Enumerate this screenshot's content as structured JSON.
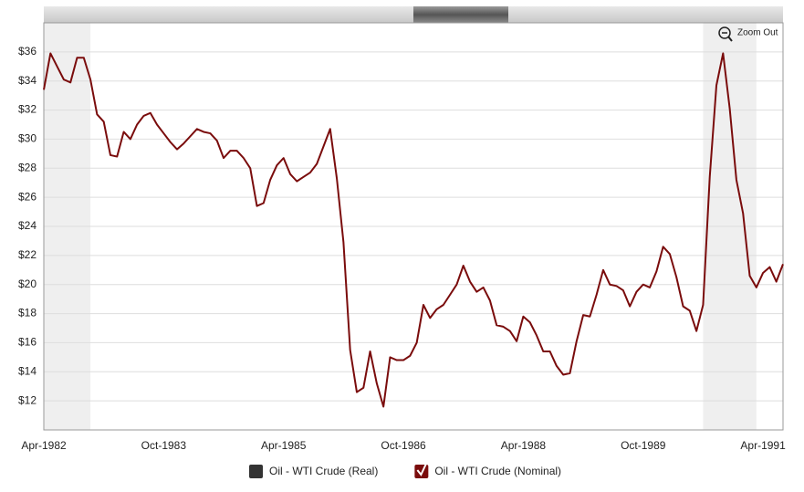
{
  "chart_data": {
    "type": "line",
    "x": [
      "Apr-1982",
      "May-1982",
      "Jun-1982",
      "Jul-1982",
      "Aug-1982",
      "Sep-1982",
      "Oct-1982",
      "Nov-1982",
      "Dec-1982",
      "Jan-1983",
      "Feb-1983",
      "Mar-1983",
      "Apr-1983",
      "May-1983",
      "Jun-1983",
      "Jul-1983",
      "Aug-1983",
      "Sep-1983",
      "Oct-1983",
      "Nov-1983",
      "Dec-1983",
      "Jan-1984",
      "Feb-1984",
      "Mar-1984",
      "Apr-1984",
      "May-1984",
      "Jun-1984",
      "Jul-1984",
      "Aug-1984",
      "Sep-1984",
      "Oct-1984",
      "Nov-1984",
      "Dec-1984",
      "Jan-1985",
      "Feb-1985",
      "Mar-1985",
      "Apr-1985",
      "May-1985",
      "Jun-1985",
      "Jul-1985",
      "Aug-1985",
      "Sep-1985",
      "Oct-1985",
      "Nov-1985",
      "Dec-1985",
      "Jan-1986",
      "Feb-1986",
      "Mar-1986",
      "Apr-1986",
      "May-1986",
      "Jun-1986",
      "Jul-1986",
      "Aug-1986",
      "Sep-1986",
      "Oct-1986",
      "Nov-1986",
      "Dec-1986",
      "Jan-1987",
      "Feb-1987",
      "Mar-1987",
      "Apr-1987",
      "May-1987",
      "Jun-1987",
      "Jul-1987",
      "Aug-1987",
      "Sep-1987",
      "Oct-1987",
      "Nov-1987",
      "Dec-1987",
      "Jan-1988",
      "Feb-1988",
      "Mar-1988",
      "Apr-1988",
      "May-1988",
      "Jun-1988",
      "Jul-1988",
      "Aug-1988",
      "Sep-1988",
      "Oct-1988",
      "Nov-1988",
      "Dec-1988",
      "Jan-1989",
      "Feb-1989",
      "Mar-1989",
      "Apr-1989",
      "May-1989",
      "Jun-1989",
      "Jul-1989",
      "Aug-1989",
      "Sep-1989",
      "Oct-1989",
      "Nov-1989",
      "Dec-1989",
      "Jan-1990",
      "Feb-1990",
      "Mar-1990",
      "Apr-1990",
      "May-1990",
      "Jun-1990",
      "Jul-1990",
      "Aug-1990",
      "Sep-1990",
      "Oct-1990",
      "Nov-1990",
      "Dec-1990",
      "Jan-1991",
      "Feb-1991",
      "Mar-1991",
      "Apr-1991",
      "May-1991",
      "Jun-1991",
      "Jul-1991"
    ],
    "series": [
      {
        "name": "Oil - WTI Crude (Real)",
        "color": "#333333",
        "visible": false
      },
      {
        "name": "Oil - WTI Crude (Nominal)",
        "color": "#7a0c0c",
        "visible": true,
        "values": [
          33.4,
          35.9,
          35.0,
          34.1,
          33.9,
          35.6,
          35.6,
          34.1,
          31.7,
          31.2,
          28.9,
          28.8,
          30.5,
          30.0,
          31.0,
          31.6,
          31.8,
          31.0,
          30.4,
          29.8,
          29.3,
          29.7,
          30.2,
          30.7,
          30.5,
          30.4,
          29.9,
          28.7,
          29.2,
          29.2,
          28.7,
          28.0,
          25.4,
          25.6,
          27.2,
          28.2,
          28.7,
          27.6,
          27.1,
          27.4,
          27.7,
          28.3,
          29.5,
          30.7,
          27.3,
          22.9,
          15.5,
          12.6,
          12.9,
          15.4,
          13.2,
          11.6,
          15.0,
          14.8,
          14.8,
          15.1,
          16.0,
          18.6,
          17.7,
          18.3,
          18.6,
          19.3,
          20.0,
          21.3,
          20.2,
          19.5,
          19.8,
          18.9,
          17.2,
          17.1,
          16.8,
          16.1,
          17.8,
          17.4,
          16.5,
          15.4,
          15.4,
          14.4,
          13.8,
          13.9,
          16.1,
          17.9,
          17.8,
          19.3,
          21.0,
          20.0,
          19.9,
          19.6,
          18.5,
          19.5,
          20.0,
          19.8,
          20.9,
          22.6,
          22.1,
          20.5,
          18.5,
          18.2,
          16.8,
          18.6,
          27.4,
          33.7,
          35.9,
          32.1,
          27.2,
          24.9,
          20.6,
          19.8,
          20.8,
          21.2,
          20.2,
          21.4
        ]
      }
    ],
    "shaded_ranges": [
      [
        "Apr-1982",
        "Nov-1982"
      ],
      [
        "Jul-1990",
        "Mar-1991"
      ]
    ],
    "xlim": [
      "Apr-1982",
      "Jul-1991"
    ],
    "xticks": [
      "Apr-1982",
      "Oct-1983",
      "Apr-1985",
      "Oct-1986",
      "Apr-1988",
      "Oct-1989",
      "Apr-1991"
    ],
    "ylim": [
      10,
      38
    ],
    "yticks": [
      {
        "value": 12,
        "label": "$12"
      },
      {
        "value": 14,
        "label": "$14"
      },
      {
        "value": 16,
        "label": "$16"
      },
      {
        "value": 18,
        "label": "$18"
      },
      {
        "value": 20,
        "label": "$20"
      },
      {
        "value": 22,
        "label": "$22"
      },
      {
        "value": 24,
        "label": "$24"
      },
      {
        "value": 26,
        "label": "$26"
      },
      {
        "value": 28,
        "label": "$28"
      },
      {
        "value": 30,
        "label": "$30"
      },
      {
        "value": 32,
        "label": "$32"
      },
      {
        "value": 34,
        "label": "$34"
      },
      {
        "value": 36,
        "label": "$36"
      }
    ],
    "grid": true,
    "zoom_button": "Zoom Out"
  }
}
